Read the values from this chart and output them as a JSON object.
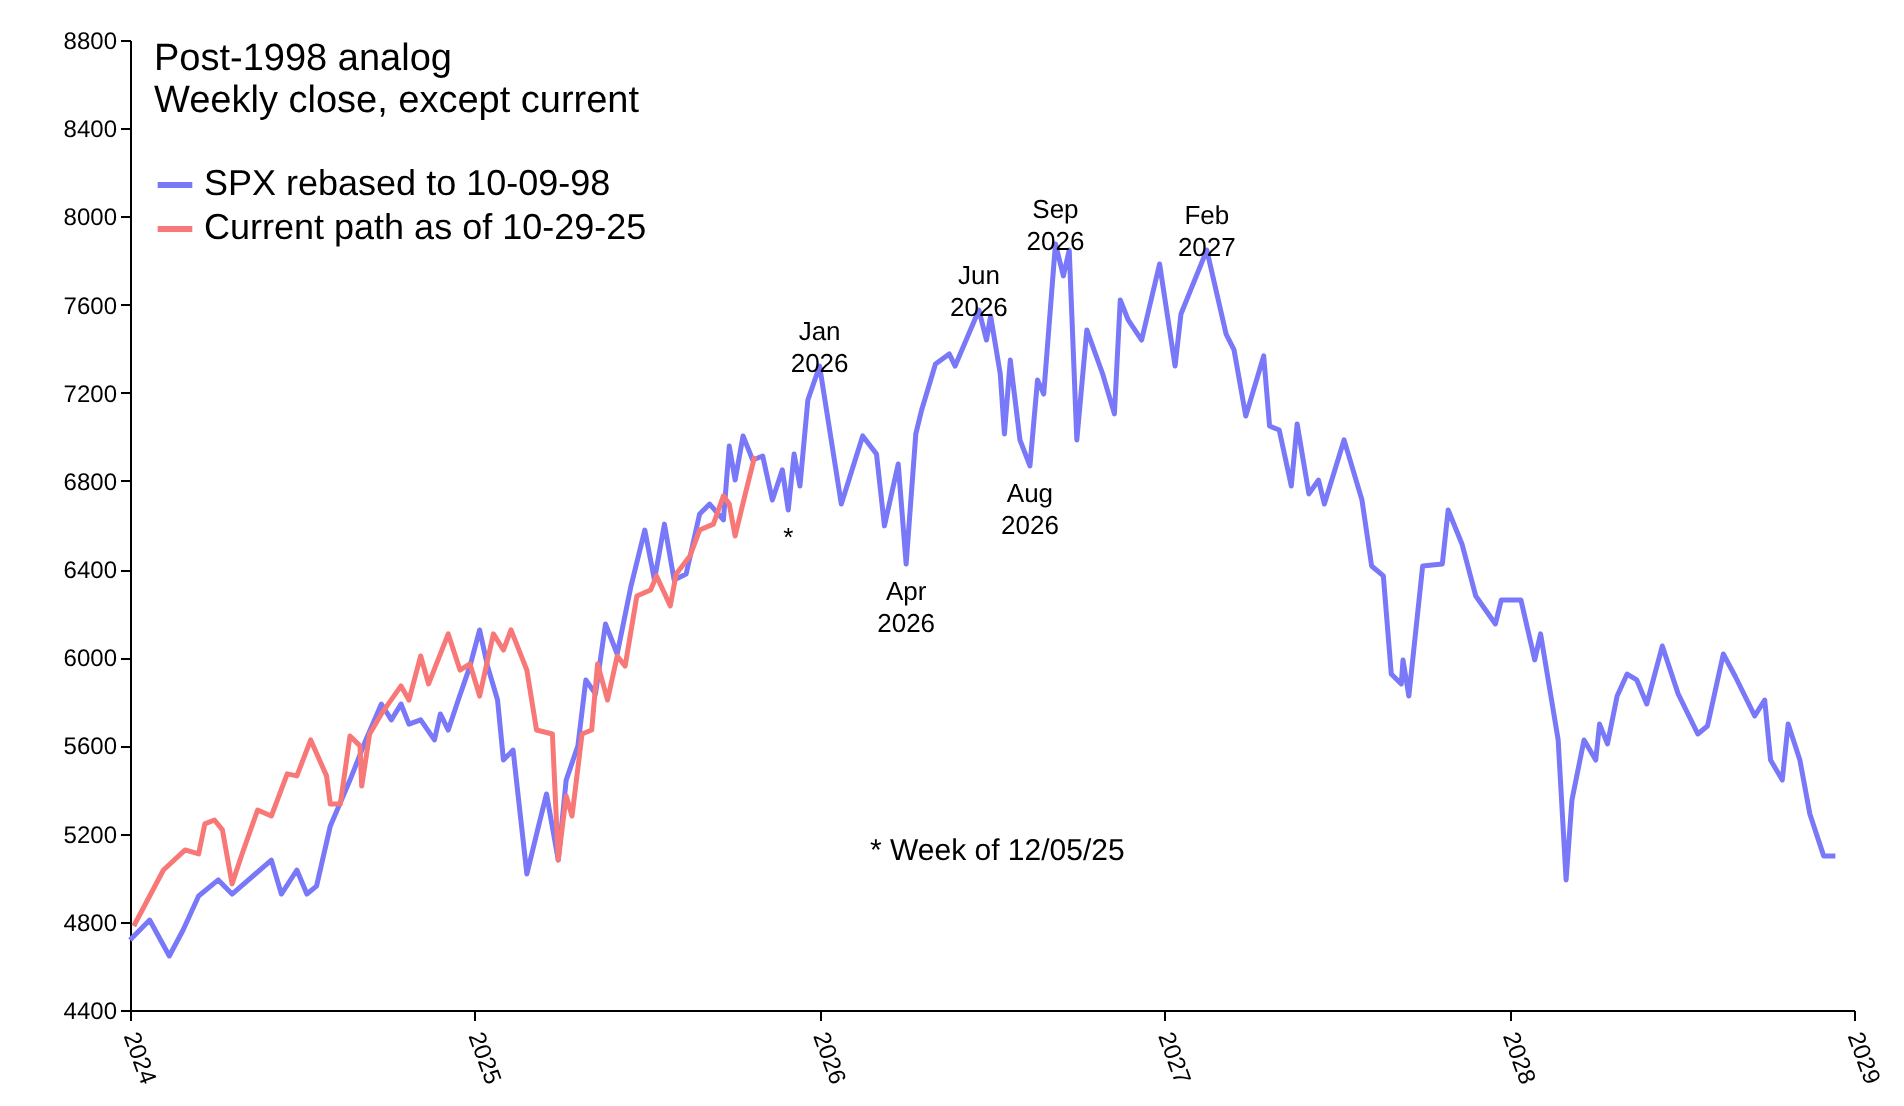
{
  "chart_data": {
    "type": "line",
    "title": "Post-1998 analog",
    "subtitle": "Weekly close, except current",
    "xlim": [
      2024,
      2029
    ],
    "xticks": [
      2024,
      2025,
      2026,
      2027,
      2028,
      2029
    ],
    "ylim": [
      4400,
      8800
    ],
    "yticks": [
      4400,
      4800,
      5200,
      5600,
      6000,
      6400,
      6800,
      7200,
      7600,
      8000,
      8400,
      8800
    ],
    "legend": "top left",
    "annotations": [
      {
        "text": "Jan 2026",
        "x": 2026.0,
        "y": 7321
      },
      {
        "text": "Apr 2026",
        "x": 2026.251,
        "y": 6423
      },
      {
        "text": "Jun 2026",
        "x": 2026.462,
        "y": 7575
      },
      {
        "text": "Aug 2026",
        "x": 2026.61,
        "y": 6868
      },
      {
        "text": "Sep 2026",
        "x": 2026.684,
        "y": 7875
      },
      {
        "text": "Feb 2027",
        "x": 2027.123,
        "y": 7847
      },
      {
        "text": "*",
        "x": 2025.909,
        "y": 6668
      },
      "* Week of 12/05/25"
    ],
    "series": [
      {
        "name": "SPX rebased to 10-09-98",
        "color": "#7878f8",
        "x": [
          2024.0,
          2024.057,
          2024.114,
          2024.154,
          2024.199,
          2024.256,
          2024.296,
          2024.41,
          2024.439,
          2024.484,
          2024.513,
          2024.541,
          2024.581,
          2024.638,
          2024.684,
          2024.729,
          2024.758,
          2024.786,
          2024.809,
          2024.843,
          2024.883,
          2024.9,
          2024.923,
          2024.952,
          2024.986,
          2025.014,
          2025.037,
          2025.066,
          2025.083,
          2025.111,
          2025.151,
          2025.185,
          2025.208,
          2025.242,
          2025.265,
          2025.299,
          2025.322,
          2025.35,
          2025.379,
          2025.413,
          2025.453,
          2025.493,
          2025.521,
          2025.55,
          2025.578,
          2025.613,
          2025.652,
          2025.681,
          2025.721,
          2025.738,
          2025.755,
          2025.778,
          2025.806,
          2025.835,
          2025.863,
          2025.892,
          2025.909,
          2025.926,
          2025.943,
          2025.966,
          2026.0,
          2026.063,
          2026.125,
          2026.165,
          2026.188,
          2026.228,
          2026.251,
          2026.279,
          2026.296,
          2026.336,
          2026.376,
          2026.393,
          2026.462,
          2026.484,
          2026.496,
          2026.524,
          2026.536,
          2026.553,
          2026.581,
          2026.61,
          2026.632,
          2026.65,
          2026.684,
          2026.707,
          2026.724,
          2026.746,
          2026.775,
          2026.821,
          2026.855,
          2026.872,
          2026.895,
          2026.934,
          2026.986,
          2027.031,
          2027.048,
          2027.123,
          2027.179,
          2027.202,
          2027.236,
          2027.288,
          2027.305,
          2027.333,
          2027.368,
          2027.385,
          2027.419,
          2027.447,
          2027.464,
          2027.521,
          2027.573,
          2027.601,
          2027.635,
          2027.658,
          2027.687,
          2027.692,
          2027.709,
          2027.749,
          2027.806,
          2027.823,
          2027.863,
          2027.903,
          2027.96,
          2027.977,
          2028.034,
          2028.074,
          2028.091,
          2028.142,
          2028.165,
          2028.182,
          2028.217,
          2028.251,
          2028.262,
          2028.285,
          2028.313,
          2028.342,
          2028.37,
          2028.399,
          2028.444,
          2028.49,
          2028.547,
          2028.575,
          2028.621,
          2028.655,
          2028.712,
          2028.741,
          2028.758,
          2028.792,
          2028.809,
          2028.843,
          2028.872,
          2028.912,
          2028.946
        ],
        "values": [
          4718,
          4808,
          4645,
          4763,
          4917,
          4990,
          4926,
          5080,
          4926,
          5035,
          4926,
          4962,
          5235,
          5443,
          5625,
          5788,
          5716,
          5788,
          5697,
          5716,
          5625,
          5743,
          5670,
          5806,
          5960,
          6124,
          5960,
          5806,
          5534,
          5579,
          5017,
          5235,
          5380,
          5080,
          5443,
          5598,
          5897,
          5834,
          6151,
          6015,
          6323,
          6577,
          6351,
          6604,
          6351,
          6378,
          6650,
          6695,
          6623,
          6958,
          6804,
          7004,
          6895,
          6913,
          6713,
          6850,
          6668,
          6922,
          6777,
          7167,
          7321,
          6695,
          7004,
          6922,
          6596,
          6877,
          6423,
          7013,
          7122,
          7330,
          7376,
          7321,
          7575,
          7439,
          7548,
          7285,
          7013,
          7348,
          6986,
          6868,
          7258,
          7194,
          7875,
          7730,
          7847,
          6986,
          7485,
          7285,
          7104,
          7621,
          7530,
          7439,
          7784,
          7321,
          7557,
          7847,
          7466,
          7394,
          7094,
          7367,
          7049,
          7031,
          6777,
          7058,
          6741,
          6804,
          6695,
          6986,
          6713,
          6414,
          6369,
          5924,
          5879,
          5988,
          5824,
          6414,
          6423,
          6668,
          6514,
          6278,
          6151,
          6260,
          6260,
          5988,
          6106,
          5625,
          4990,
          5353,
          5625,
          5534,
          5697,
          5607,
          5824,
          5924,
          5897,
          5788,
          6051,
          5834,
          5652,
          5688,
          6015,
          5915,
          5734,
          5806,
          5534,
          5443,
          5697,
          5534,
          5289,
          5099,
          5099
        ]
      },
      {
        "name": "Current path as of 10-29-25",
        "color": "#f87878",
        "x": [
          2024.011,
          2024.097,
          2024.16,
          2024.199,
          2024.217,
          2024.245,
          2024.268,
          2024.296,
          2024.325,
          2024.37,
          2024.41,
          2024.456,
          2024.484,
          2024.524,
          2024.57,
          2024.581,
          2024.61,
          2024.638,
          2024.667,
          2024.672,
          2024.695,
          2024.729,
          2024.786,
          2024.809,
          2024.843,
          2024.866,
          2024.923,
          2024.957,
          2024.986,
          2025.014,
          2025.054,
          2025.083,
          2025.105,
          2025.151,
          2025.179,
          2025.225,
          2025.242,
          2025.265,
          2025.282,
          2025.311,
          2025.339,
          2025.356,
          2025.385,
          2025.413,
          2025.436,
          2025.47,
          2025.51,
          2025.527,
          2025.567,
          2025.584,
          2025.624,
          2025.652,
          2025.692,
          2025.721,
          2025.738,
          2025.755,
          2025.783,
          2025.812
        ],
        "values": [
          4781,
          5035,
          5126,
          5108,
          5244,
          5262,
          5217,
          4972,
          5108,
          5307,
          5280,
          5471,
          5462,
          5625,
          5462,
          5334,
          5334,
          5643,
          5598,
          5416,
          5652,
          5743,
          5870,
          5806,
          6006,
          5879,
          6106,
          5942,
          5970,
          5824,
          6106,
          6033,
          6124,
          5942,
          5670,
          5652,
          5080,
          5371,
          5280,
          5652,
          5670,
          5970,
          5806,
          6006,
          5960,
          6278,
          6305,
          6369,
          6233,
          6378,
          6459,
          6577,
          6604,
          6732,
          6695,
          6550,
          6732,
          6913
        ]
      }
    ]
  }
}
